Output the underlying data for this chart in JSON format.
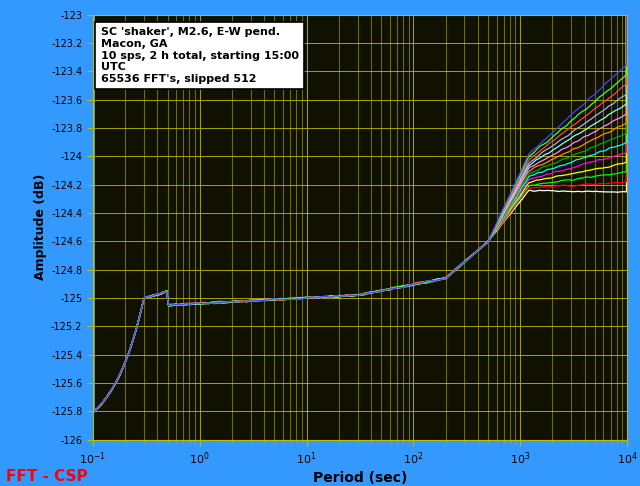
{
  "title": "",
  "xlabel": "Period (sec)",
  "ylabel": "Amplitude (dB)",
  "annotation_lines": [
    "SC 'shaker', M2.6, E-W pend.",
    "Macon, GA",
    "10 sps, 2 h total, starting 15:00",
    "UTC",
    "65536 FFT's, slipped 512"
  ],
  "bottom_left_text": "FFT - CSP",
  "bottom_left_color": "#ff0000",
  "background_color": "#3399ff",
  "plot_bg_color": "#111100",
  "grid_color": "#bbbb00",
  "ylim": [
    -126,
    -123
  ],
  "xlim_log": [
    0.1,
    10000
  ],
  "yticks": [
    -126,
    -125.8,
    -125.6,
    -125.4,
    -125.2,
    -125,
    -124.8,
    -124.6,
    -124.4,
    -124.2,
    -124,
    -123.8,
    -123.6,
    -123.4,
    -123.2,
    -123
  ],
  "line_colors": [
    "#ffffff",
    "#ff0000",
    "#00ff00",
    "#ffff00",
    "#ff00ff",
    "#00ffff",
    "#00aa00",
    "#ff8800",
    "#ff88ff",
    "#88ffff",
    "#aaaaff",
    "#ff4444",
    "#44ff44",
    "#4444ff",
    "#ffaa00",
    "#ff44aa"
  ],
  "num_lines": 14
}
